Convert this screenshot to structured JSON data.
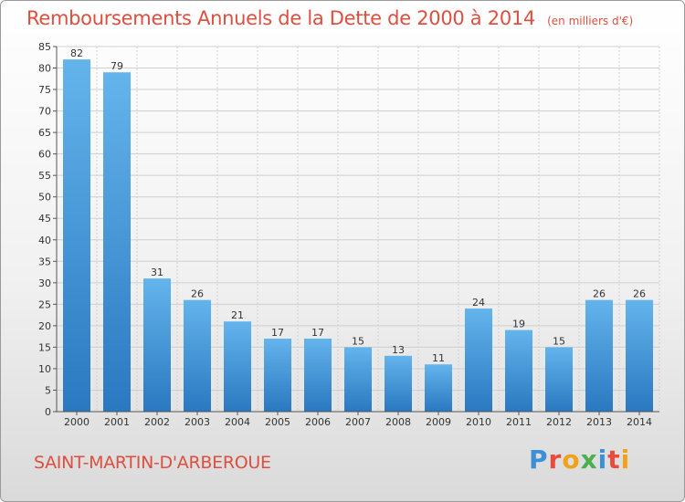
{
  "title": "Remboursements Annuels de la Dette de 2000 à 2014",
  "subtitle": "(en milliers d'€)",
  "commune": "SAINT-MARTIN-D'ARBEROUE",
  "logo": {
    "letters": [
      "P",
      "r",
      "o",
      "x",
      "i",
      "t",
      "i"
    ],
    "colors": [
      "#3d8fd6",
      "#e94b3c",
      "#f2a21a",
      "#4caf50",
      "#3d8fd6",
      "#e94b3c",
      "#f2a21a"
    ]
  },
  "colors": {
    "bar_light": "#64b4ec",
    "bar_dark": "#2a78c0",
    "title": "#dd4f3f",
    "grid": "#cfcfcf"
  },
  "chart_data": {
    "type": "bar",
    "categories": [
      "2000",
      "2001",
      "2002",
      "2003",
      "2004",
      "2005",
      "2006",
      "2007",
      "2008",
      "2009",
      "2010",
      "2011",
      "2012",
      "2013",
      "2014"
    ],
    "values": [
      82,
      79,
      31,
      26,
      21,
      17,
      17,
      15,
      13,
      11,
      24,
      19,
      15,
      26,
      26
    ],
    "ylim": [
      0,
      85
    ],
    "yticks": [
      0,
      5,
      10,
      15,
      20,
      25,
      30,
      35,
      40,
      45,
      50,
      55,
      60,
      65,
      70,
      75,
      80,
      85
    ],
    "grid": true
  }
}
